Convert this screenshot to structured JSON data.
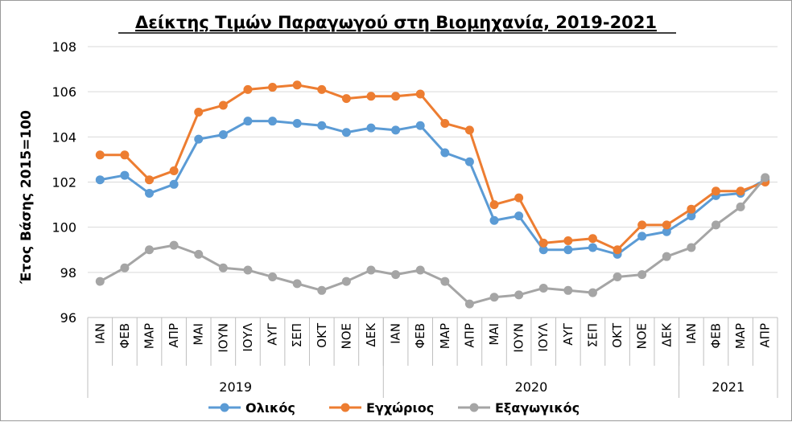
{
  "chart_data": {
    "type": "line",
    "title": "Δείκτης Τιμών Παραγωγού στη Βιομηχανία, 2019-2021",
    "ylabel": "Έτος Βάσης 2015=100",
    "xlabel": "",
    "ylim": [
      96,
      108
    ],
    "yticks": [
      96,
      98,
      100,
      102,
      104,
      106,
      108
    ],
    "grid": true,
    "legend": "bottom",
    "categories": [
      "ΙΑΝ",
      "ΦΕΒ",
      "ΜΑΡ",
      "ΑΠΡ",
      "ΜΑΙ",
      "ΙΟΥΝ",
      "ΙΟΥΛ",
      "ΑΥΓ",
      "ΣΕΠ",
      "ΟΚΤ",
      "ΝΟΕ",
      "ΔΕΚ",
      "ΙΑΝ",
      "ΦΕΒ",
      "ΜΑΡ",
      "ΑΠΡ",
      "ΜΑΙ",
      "ΙΟΥΝ",
      "ΙΟΥΛ",
      "ΑΥΓ",
      "ΣΕΠ",
      "ΟΚΤ",
      "ΝΟΕ",
      "ΔΕΚ",
      "ΙΑΝ",
      "ΦΕΒ",
      "ΜΑΡ",
      "ΑΠΡ"
    ],
    "year_groups": [
      {
        "label": "2019",
        "count": 12
      },
      {
        "label": "2020",
        "count": 12
      },
      {
        "label": "2021",
        "count": 4
      }
    ],
    "series": [
      {
        "name": "Ολικός",
        "color": "#5b9bd5",
        "values": [
          102.1,
          102.3,
          101.5,
          101.9,
          103.9,
          104.1,
          104.7,
          104.7,
          104.6,
          104.5,
          104.2,
          104.4,
          104.3,
          104.5,
          103.3,
          102.9,
          100.3,
          100.5,
          99.0,
          99.0,
          99.1,
          98.8,
          99.6,
          99.8,
          100.5,
          101.4,
          101.5,
          102.1
        ]
      },
      {
        "name": "Εγχώριος",
        "color": "#ed7d31",
        "values": [
          103.2,
          103.2,
          102.1,
          102.5,
          105.1,
          105.4,
          106.1,
          106.2,
          106.3,
          106.1,
          105.7,
          105.8,
          105.8,
          105.9,
          104.6,
          104.3,
          101.0,
          101.3,
          99.3,
          99.4,
          99.5,
          99.0,
          100.1,
          100.1,
          100.8,
          101.6,
          101.6,
          102.0
        ]
      },
      {
        "name": "Εξαγωγικός",
        "color": "#a5a5a5",
        "values": [
          97.6,
          98.2,
          99.0,
          99.2,
          98.8,
          98.2,
          98.1,
          97.8,
          97.5,
          97.2,
          97.6,
          98.1,
          97.9,
          98.1,
          97.6,
          96.6,
          96.9,
          97.0,
          97.3,
          97.2,
          97.1,
          97.8,
          97.9,
          98.7,
          99.1,
          100.1,
          100.9,
          102.2
        ]
      }
    ]
  }
}
